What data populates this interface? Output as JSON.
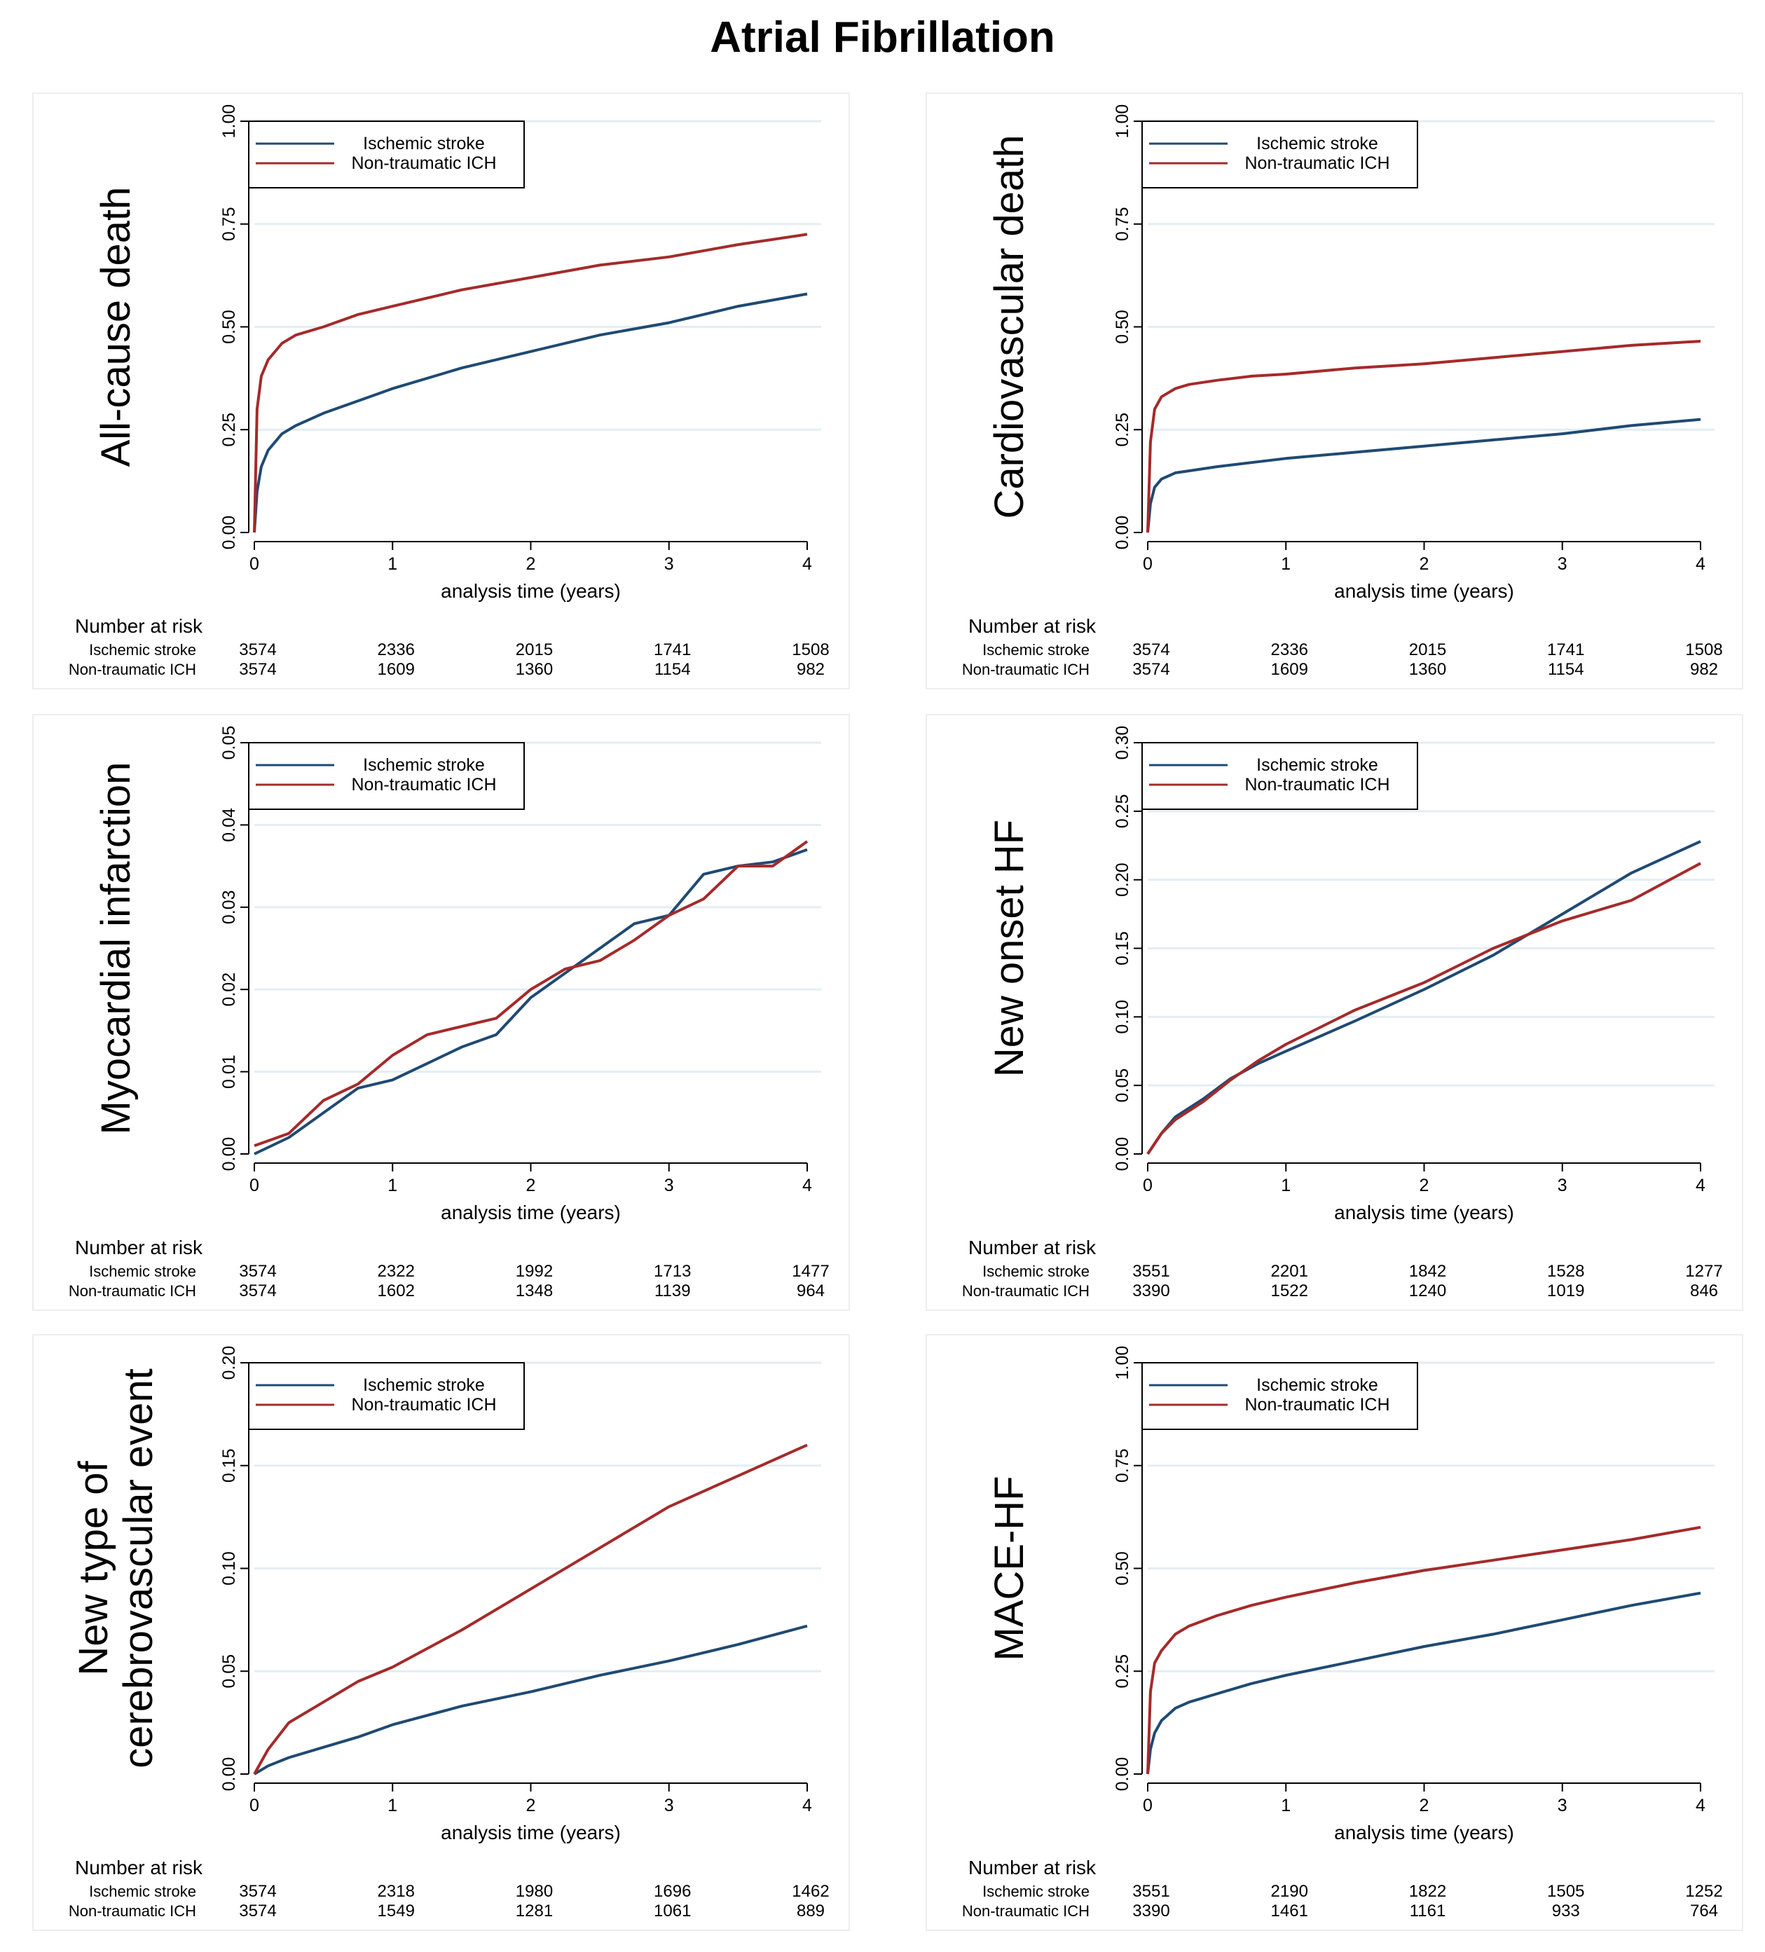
{
  "title": "Atrial Fibrillation",
  "colors": {
    "ischemic": "#1f4a73",
    "ich": "#a52a2a",
    "grid": "#e3eef3",
    "frame": "#eeeeee"
  },
  "chart_data": [
    {
      "type": "line",
      "ylabel": [
        "All-cause death"
      ],
      "xlabel": "analysis time (years)",
      "xlim": [
        0,
        4
      ],
      "ylim": [
        0,
        1
      ],
      "xticks": [
        "0",
        "1",
        "2",
        "3",
        "4"
      ],
      "yticks": [
        "0.00",
        "0.25",
        "0.50",
        "0.75",
        "1.00"
      ],
      "legend": [
        "Ischemic stroke",
        "Non-traumatic ICH"
      ],
      "series": [
        {
          "name": "Ischemic stroke",
          "x": [
            0,
            0.02,
            0.05,
            0.1,
            0.2,
            0.3,
            0.5,
            0.75,
            1,
            1.5,
            2,
            2.5,
            3,
            3.5,
            4
          ],
          "y": [
            0,
            0.1,
            0.16,
            0.2,
            0.24,
            0.26,
            0.29,
            0.32,
            0.35,
            0.4,
            0.44,
            0.48,
            0.51,
            0.55,
            0.58
          ]
        },
        {
          "name": "Non-traumatic ICH",
          "x": [
            0,
            0.02,
            0.05,
            0.1,
            0.2,
            0.3,
            0.5,
            0.75,
            1,
            1.5,
            2,
            2.5,
            3,
            3.5,
            4
          ],
          "y": [
            0,
            0.3,
            0.38,
            0.42,
            0.46,
            0.48,
            0.5,
            0.53,
            0.55,
            0.59,
            0.62,
            0.65,
            0.67,
            0.7,
            0.725
          ]
        }
      ],
      "risk": {
        "header": "Number at risk",
        "labels": [
          "Ischemic stroke",
          "Non-traumatic ICH"
        ],
        "rows": [
          [
            "3574",
            "2336",
            "2015",
            "1741",
            "1508"
          ],
          [
            "3574",
            "1609",
            "1360",
            "1154",
            "982"
          ]
        ]
      }
    },
    {
      "type": "line",
      "ylabel": [
        "Cardiovascular death"
      ],
      "xlabel": "analysis time (years)",
      "xlim": [
        0,
        4
      ],
      "ylim": [
        0,
        1
      ],
      "xticks": [
        "0",
        "1",
        "2",
        "3",
        "4"
      ],
      "yticks": [
        "0.00",
        "0.25",
        "0.50",
        "0.75",
        "1.00"
      ],
      "legend": [
        "Ischemic stroke",
        "Non-traumatic ICH"
      ],
      "series": [
        {
          "name": "Ischemic stroke",
          "x": [
            0,
            0.02,
            0.05,
            0.1,
            0.2,
            0.3,
            0.5,
            0.75,
            1,
            1.5,
            2,
            2.5,
            3,
            3.5,
            4
          ],
          "y": [
            0,
            0.07,
            0.11,
            0.13,
            0.145,
            0.15,
            0.16,
            0.17,
            0.18,
            0.195,
            0.21,
            0.225,
            0.24,
            0.26,
            0.275
          ]
        },
        {
          "name": "Non-traumatic ICH",
          "x": [
            0,
            0.02,
            0.05,
            0.1,
            0.2,
            0.3,
            0.5,
            0.75,
            1,
            1.5,
            2,
            2.5,
            3,
            3.5,
            4
          ],
          "y": [
            0,
            0.22,
            0.3,
            0.33,
            0.35,
            0.36,
            0.37,
            0.38,
            0.385,
            0.4,
            0.41,
            0.425,
            0.44,
            0.455,
            0.465
          ]
        }
      ],
      "risk": {
        "header": "Number at risk",
        "labels": [
          "Ischemic stroke",
          "Non-traumatic ICH"
        ],
        "rows": [
          [
            "3574",
            "2336",
            "2015",
            "1741",
            "1508"
          ],
          [
            "3574",
            "1609",
            "1360",
            "1154",
            "982"
          ]
        ]
      }
    },
    {
      "type": "line",
      "ylabel": [
        "Myocardial infarction"
      ],
      "xlabel": "analysis time (years)",
      "xlim": [
        0,
        4
      ],
      "ylim": [
        0,
        0.05
      ],
      "xticks": [
        "0",
        "1",
        "2",
        "3",
        "4"
      ],
      "yticks": [
        "0.00",
        "0.01",
        "0.02",
        "0.03",
        "0.04",
        "0.05"
      ],
      "legend": [
        "Ischemic stroke",
        "Non-traumatic ICH"
      ],
      "series": [
        {
          "name": "Ischemic stroke",
          "x": [
            0,
            0.25,
            0.5,
            0.75,
            1,
            1.25,
            1.5,
            1.75,
            2,
            2.25,
            2.5,
            2.75,
            3,
            3.25,
            3.5,
            3.75,
            4
          ],
          "y": [
            0,
            0.002,
            0.005,
            0.008,
            0.009,
            0.011,
            0.013,
            0.0145,
            0.019,
            0.022,
            0.025,
            0.028,
            0.029,
            0.034,
            0.035,
            0.0355,
            0.037
          ]
        },
        {
          "name": "Non-traumatic ICH",
          "x": [
            0,
            0.25,
            0.5,
            0.75,
            1,
            1.25,
            1.5,
            1.75,
            2,
            2.25,
            2.5,
            2.75,
            3,
            3.25,
            3.5,
            3.75,
            4
          ],
          "y": [
            0.001,
            0.0025,
            0.0065,
            0.0085,
            0.012,
            0.0145,
            0.0155,
            0.0165,
            0.02,
            0.0225,
            0.0235,
            0.026,
            0.029,
            0.031,
            0.035,
            0.035,
            0.038
          ]
        }
      ],
      "risk": {
        "header": "Number at risk",
        "labels": [
          "Ischemic stroke",
          "Non-traumatic ICH"
        ],
        "rows": [
          [
            "3574",
            "2322",
            "1992",
            "1713",
            "1477"
          ],
          [
            "3574",
            "1602",
            "1348",
            "1139",
            "964"
          ]
        ]
      }
    },
    {
      "type": "line",
      "ylabel": [
        "New onset HF"
      ],
      "xlabel": "analysis time (years)",
      "xlim": [
        0,
        4
      ],
      "ylim": [
        0,
        0.3
      ],
      "xticks": [
        "0",
        "1",
        "2",
        "3",
        "4"
      ],
      "yticks": [
        "0.00",
        "0.05",
        "0.10",
        "0.15",
        "0.20",
        "0.25",
        "0.30"
      ],
      "legend": [
        "Ischemic stroke",
        "Non-traumatic ICH"
      ],
      "series": [
        {
          "name": "Ischemic stroke",
          "x": [
            0,
            0.1,
            0.2,
            0.4,
            0.6,
            0.8,
            1,
            1.5,
            2,
            2.5,
            3,
            3.5,
            4
          ],
          "y": [
            0,
            0.015,
            0.027,
            0.04,
            0.055,
            0.066,
            0.075,
            0.097,
            0.12,
            0.145,
            0.175,
            0.205,
            0.228
          ]
        },
        {
          "name": "Non-traumatic ICH",
          "x": [
            0,
            0.1,
            0.2,
            0.4,
            0.6,
            0.8,
            1,
            1.5,
            2,
            2.5,
            3,
            3.5,
            4
          ],
          "y": [
            0,
            0.015,
            0.025,
            0.038,
            0.054,
            0.068,
            0.08,
            0.105,
            0.125,
            0.15,
            0.17,
            0.185,
            0.212
          ]
        }
      ],
      "risk": {
        "header": "Number at risk",
        "labels": [
          "Ischemic stroke",
          "Non-traumatic ICH"
        ],
        "rows": [
          [
            "3551",
            "2201",
            "1842",
            "1528",
            "1277"
          ],
          [
            "3390",
            "1522",
            "1240",
            "1019",
            "846"
          ]
        ]
      }
    },
    {
      "type": "line",
      "ylabel": [
        "New type of",
        "cerebrovascular event"
      ],
      "xlabel": "analysis time (years)",
      "xlim": [
        0,
        4
      ],
      "ylim": [
        0,
        0.2
      ],
      "xticks": [
        "0",
        "1",
        "2",
        "3",
        "4"
      ],
      "yticks": [
        "0.00",
        "0.05",
        "0.10",
        "0.15",
        "0.20"
      ],
      "legend": [
        "Ischemic stroke",
        "Non-traumatic ICH"
      ],
      "series": [
        {
          "name": "Ischemic stroke",
          "x": [
            0,
            0.1,
            0.25,
            0.5,
            0.75,
            1,
            1.5,
            2,
            2.5,
            3,
            3.5,
            4
          ],
          "y": [
            0,
            0.004,
            0.008,
            0.013,
            0.018,
            0.024,
            0.033,
            0.04,
            0.048,
            0.055,
            0.063,
            0.072
          ]
        },
        {
          "name": "Non-traumatic ICH",
          "x": [
            0,
            0.1,
            0.25,
            0.5,
            0.75,
            1,
            1.5,
            2,
            2.5,
            3,
            3.5,
            4
          ],
          "y": [
            0,
            0.012,
            0.025,
            0.035,
            0.045,
            0.052,
            0.07,
            0.09,
            0.11,
            0.13,
            0.145,
            0.16
          ]
        }
      ],
      "risk": {
        "header": "Number at risk",
        "labels": [
          "Ischemic stroke",
          "Non-traumatic ICH"
        ],
        "rows": [
          [
            "3574",
            "2318",
            "1980",
            "1696",
            "1462"
          ],
          [
            "3574",
            "1549",
            "1281",
            "1061",
            "889"
          ]
        ]
      }
    },
    {
      "type": "line",
      "ylabel": [
        "MACE-HF"
      ],
      "xlabel": "analysis time (years)",
      "xlim": [
        0,
        4
      ],
      "ylim": [
        0,
        1
      ],
      "xticks": [
        "0",
        "1",
        "2",
        "3",
        "4"
      ],
      "yticks": [
        "0.00",
        "0.25",
        "0.50",
        "0.75",
        "1.00"
      ],
      "legend": [
        "Ischemic stroke",
        "Non-traumatic ICH"
      ],
      "series": [
        {
          "name": "Ischemic stroke",
          "x": [
            0,
            0.02,
            0.05,
            0.1,
            0.2,
            0.3,
            0.5,
            0.75,
            1,
            1.5,
            2,
            2.5,
            3,
            3.5,
            4
          ],
          "y": [
            0,
            0.06,
            0.1,
            0.13,
            0.16,
            0.175,
            0.195,
            0.22,
            0.24,
            0.275,
            0.31,
            0.34,
            0.375,
            0.41,
            0.44
          ]
        },
        {
          "name": "Non-traumatic ICH",
          "x": [
            0,
            0.02,
            0.05,
            0.1,
            0.2,
            0.3,
            0.5,
            0.75,
            1,
            1.5,
            2,
            2.5,
            3,
            3.5,
            4
          ],
          "y": [
            0,
            0.2,
            0.27,
            0.3,
            0.34,
            0.36,
            0.385,
            0.41,
            0.43,
            0.465,
            0.495,
            0.52,
            0.545,
            0.57,
            0.6
          ]
        }
      ],
      "risk": {
        "header": "Number at risk",
        "labels": [
          "Ischemic stroke",
          "Non-traumatic ICH"
        ],
        "rows": [
          [
            "3551",
            "2190",
            "1822",
            "1505",
            "1252"
          ],
          [
            "3390",
            "1461",
            "1161",
            "933",
            "764"
          ]
        ]
      }
    }
  ]
}
